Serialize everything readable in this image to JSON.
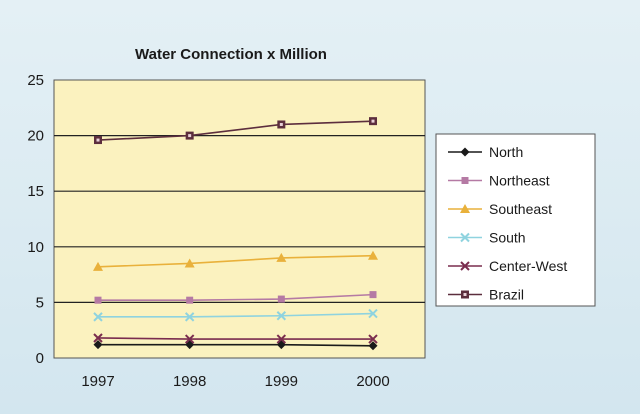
{
  "chart_data": {
    "type": "line",
    "title": "Water Connection x Million",
    "xlabel": "",
    "ylabel": "",
    "categories": [
      "1997",
      "1998",
      "1999",
      "2000"
    ],
    "ylim": [
      0,
      25
    ],
    "yticks": [
      0,
      5,
      10,
      15,
      20,
      25
    ],
    "grid": true,
    "legend_position": "right",
    "plot_background": "#fbf2bf",
    "series": [
      {
        "name": "North",
        "values": [
          1.2,
          1.2,
          1.2,
          1.1
        ],
        "color": "#1a1a1a",
        "marker": "diamond"
      },
      {
        "name": "Northeast",
        "values": [
          5.2,
          5.2,
          5.3,
          5.7
        ],
        "color": "#b57aa4",
        "marker": "square"
      },
      {
        "name": "Southeast",
        "values": [
          8.2,
          8.5,
          9.0,
          9.2
        ],
        "color": "#e9b13b",
        "marker": "triangle"
      },
      {
        "name": "South",
        "values": [
          3.7,
          3.7,
          3.8,
          4.0
        ],
        "color": "#8fd3df",
        "marker": "x"
      },
      {
        "name": "Center-West",
        "values": [
          1.8,
          1.7,
          1.7,
          1.7
        ],
        "color": "#7a2d4e",
        "marker": "x"
      },
      {
        "name": "Brazil",
        "values": [
          19.6,
          20.0,
          21.0,
          21.3
        ],
        "color": "#5c2e3d",
        "marker": "square-dot"
      }
    ]
  }
}
